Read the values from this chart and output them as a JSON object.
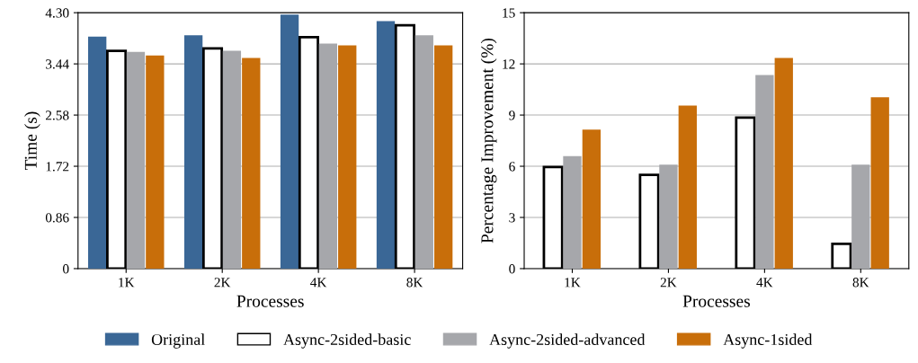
{
  "chart_data": [
    {
      "type": "bar",
      "xlabel": "Processes",
      "ylabel": "Time (s)",
      "categories": [
        "1K",
        "2K",
        "4K",
        "8K"
      ],
      "series": [
        {
          "name": "Original",
          "color": "#3a6796",
          "values": [
            3.9,
            3.92,
            4.27,
            4.16
          ]
        },
        {
          "name": "Async-2sided-basic",
          "color": "#ffffff",
          "values": [
            3.66,
            3.7,
            3.89,
            4.09
          ]
        },
        {
          "name": "Async-2sided-advanced",
          "color": "#a6a7ab",
          "values": [
            3.64,
            3.66,
            3.78,
            3.92
          ]
        },
        {
          "name": "Async-1sided",
          "color": "#c86e0a",
          "values": [
            3.58,
            3.54,
            3.75,
            3.75
          ]
        }
      ],
      "ylim": [
        0,
        4.3
      ],
      "yticks": [
        0,
        0.86,
        1.72,
        2.58,
        3.44,
        {
          "value": 4.3,
          "label": "4.30"
        }
      ],
      "grid": "y",
      "legend": "bottom"
    },
    {
      "type": "bar",
      "xlabel": "Processes",
      "ylabel": "Percentage Improvement (%)",
      "categories": [
        "1K",
        "2K",
        "4K",
        "8K"
      ],
      "series": [
        {
          "name": "Async-2sided-basic",
          "color": "#ffffff",
          "values": [
            5.95,
            5.5,
            8.85,
            1.45
          ]
        },
        {
          "name": "Async-2sided-advanced",
          "color": "#a6a7ab",
          "values": [
            6.6,
            6.1,
            11.35,
            6.1
          ]
        },
        {
          "name": "Async-1sided",
          "color": "#c86e0a",
          "values": [
            8.15,
            9.55,
            12.35,
            10.05
          ]
        }
      ],
      "ylim": [
        0,
        15
      ],
      "yticks": [
        0,
        3,
        6,
        9,
        12,
        15
      ],
      "grid": "y",
      "legend": "bottom"
    }
  ]
}
